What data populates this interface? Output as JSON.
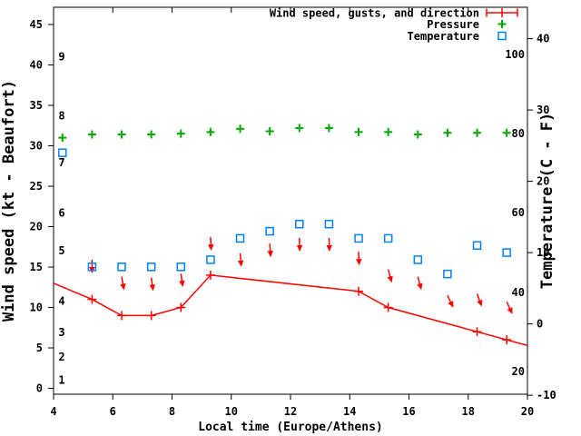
{
  "chart_data": {
    "type": "line",
    "title": "",
    "xlabel": "Local time (Europe/Athens)",
    "ylabel": "Wind speed (kt - Beaufort)",
    "y2label": "Temperature (C - F)",
    "grid": false,
    "legend_position": "top-right-inside",
    "x_axis": {
      "ticks": [
        4,
        6,
        8,
        10,
        12,
        14,
        16,
        18,
        20
      ],
      "range": [
        4,
        20
      ]
    },
    "y_axis_wind_kt": {
      "ticks": [
        0,
        5,
        10,
        15,
        20,
        25,
        30,
        35,
        40,
        45
      ],
      "range": [
        -0.8,
        47.7
      ]
    },
    "y2_axis_temp_c": {
      "ticks": [
        -10,
        0,
        10,
        20,
        30,
        40
      ],
      "range": [
        -10.4,
        44.5
      ]
    },
    "beaufort_scale_labels": [
      {
        "label": "1",
        "kt": 1.0
      },
      {
        "label": "2",
        "kt": 3.9
      },
      {
        "label": "3",
        "kt": 6.9
      },
      {
        "label": "4",
        "kt": 10.8
      },
      {
        "label": "5",
        "kt": 17.0
      },
      {
        "label": "6",
        "kt": 21.7
      },
      {
        "label": "7",
        "kt": 27.9
      },
      {
        "label": "8",
        "kt": 33.7
      },
      {
        "label": "9",
        "kt": 41.0
      }
    ],
    "fahrenheit_scale_labels": [
      {
        "label": "20",
        "c_equiv": -6.7
      },
      {
        "label": "40",
        "c_equiv": 4.4
      },
      {
        "label": "60",
        "c_equiv": 15.6
      },
      {
        "label": "80",
        "c_equiv": 26.7
      },
      {
        "label": "100",
        "c_equiv": 37.8
      }
    ],
    "series": [
      {
        "name": "Wind speed, gusts, and direction",
        "color": "#ff0000",
        "style": "line with plus markers and gust direction arrows",
        "line_points": [
          {
            "t": 4.0,
            "kt": 13.0
          },
          {
            "t": 5.3,
            "kt": 11.0
          },
          {
            "t": 6.3,
            "kt": 9.0
          },
          {
            "t": 7.3,
            "kt": 9.0
          },
          {
            "t": 8.3,
            "kt": 10.0
          },
          {
            "t": 9.3,
            "kt": 14.0
          },
          {
            "t": 14.3,
            "kt": 12.0
          },
          {
            "t": 15.3,
            "kt": 10.0
          },
          {
            "t": 18.3,
            "kt": 7.0
          },
          {
            "t": 19.3,
            "kt": 6.0
          },
          {
            "t": 20.0,
            "kt": 5.3
          }
        ],
        "marker_points": [
          {
            "t": 5.3,
            "kt": 11.0
          },
          {
            "t": 6.3,
            "kt": 9.0
          },
          {
            "t": 7.3,
            "kt": 9.0
          },
          {
            "t": 8.3,
            "kt": 10.0
          },
          {
            "t": 9.3,
            "kt": 14.0
          },
          {
            "t": 14.3,
            "kt": 12.0
          },
          {
            "t": 15.3,
            "kt": 10.0
          },
          {
            "t": 18.3,
            "kt": 7.0
          },
          {
            "t": 19.3,
            "kt": 6.0
          }
        ],
        "gust_arrows": [
          {
            "t": 5.3,
            "gust_kt": 15.9,
            "angle_deg": 0
          },
          {
            "t": 6.3,
            "gust_kt": 13.8,
            "angle_deg": 10
          },
          {
            "t": 7.3,
            "gust_kt": 13.7,
            "angle_deg": 8
          },
          {
            "t": 8.3,
            "gust_kt": 14.2,
            "angle_deg": 8
          },
          {
            "t": 9.3,
            "gust_kt": 18.7,
            "angle_deg": 3
          },
          {
            "t": 10.3,
            "gust_kt": 16.7,
            "angle_deg": 5
          },
          {
            "t": 11.3,
            "gust_kt": 17.9,
            "angle_deg": 4
          },
          {
            "t": 12.3,
            "gust_kt": 18.6,
            "angle_deg": 2
          },
          {
            "t": 13.3,
            "gust_kt": 18.6,
            "angle_deg": 2
          },
          {
            "t": 14.3,
            "gust_kt": 16.9,
            "angle_deg": 2
          },
          {
            "t": 15.3,
            "gust_kt": 14.7,
            "angle_deg": 15
          },
          {
            "t": 16.3,
            "gust_kt": 13.8,
            "angle_deg": 15
          },
          {
            "t": 17.3,
            "gust_kt": 11.5,
            "angle_deg": 25
          },
          {
            "t": 18.3,
            "gust_kt": 11.7,
            "angle_deg": 20
          },
          {
            "t": 19.3,
            "gust_kt": 10.7,
            "angle_deg": 25
          }
        ]
      },
      {
        "name": "Pressure",
        "color": "#00a800",
        "style": "plus markers",
        "points": [
          {
            "t": 4.3,
            "y_on_wind_axis_kt": 31.0
          },
          {
            "t": 5.3,
            "y_on_wind_axis_kt": 31.4
          },
          {
            "t": 6.3,
            "y_on_wind_axis_kt": 31.4
          },
          {
            "t": 7.3,
            "y_on_wind_axis_kt": 31.4
          },
          {
            "t": 8.3,
            "y_on_wind_axis_kt": 31.5
          },
          {
            "t": 9.3,
            "y_on_wind_axis_kt": 31.7
          },
          {
            "t": 10.3,
            "y_on_wind_axis_kt": 32.1
          },
          {
            "t": 11.3,
            "y_on_wind_axis_kt": 31.8
          },
          {
            "t": 12.3,
            "y_on_wind_axis_kt": 32.2
          },
          {
            "t": 13.3,
            "y_on_wind_axis_kt": 32.2
          },
          {
            "t": 14.3,
            "y_on_wind_axis_kt": 31.7
          },
          {
            "t": 15.3,
            "y_on_wind_axis_kt": 31.7
          },
          {
            "t": 16.3,
            "y_on_wind_axis_kt": 31.4
          },
          {
            "t": 17.3,
            "y_on_wind_axis_kt": 31.6
          },
          {
            "t": 18.3,
            "y_on_wind_axis_kt": 31.6
          },
          {
            "t": 19.3,
            "y_on_wind_axis_kt": 31.6
          }
        ]
      },
      {
        "name": "Temperature",
        "color": "#0080ff",
        "style": "open square markers",
        "points": [
          {
            "t": 4.3,
            "c": 24
          },
          {
            "t": 5.3,
            "c": 8
          },
          {
            "t": 6.3,
            "c": 8
          },
          {
            "t": 7.3,
            "c": 8
          },
          {
            "t": 8.3,
            "c": 8
          },
          {
            "t": 9.3,
            "c": 9
          },
          {
            "t": 10.3,
            "c": 12
          },
          {
            "t": 11.3,
            "c": 13
          },
          {
            "t": 12.3,
            "c": 14
          },
          {
            "t": 13.3,
            "c": 14
          },
          {
            "t": 14.3,
            "c": 12
          },
          {
            "t": 15.3,
            "c": 12
          },
          {
            "t": 16.3,
            "c": 9
          },
          {
            "t": 17.3,
            "c": 7
          },
          {
            "t": 18.3,
            "c": 11
          },
          {
            "t": 19.3,
            "c": 10
          }
        ]
      }
    ]
  },
  "colors": {
    "wind": "#ff0000",
    "pressure": "#00a800",
    "temperature": "#0080ff",
    "axis": "#000000",
    "background": "#ffffff"
  }
}
